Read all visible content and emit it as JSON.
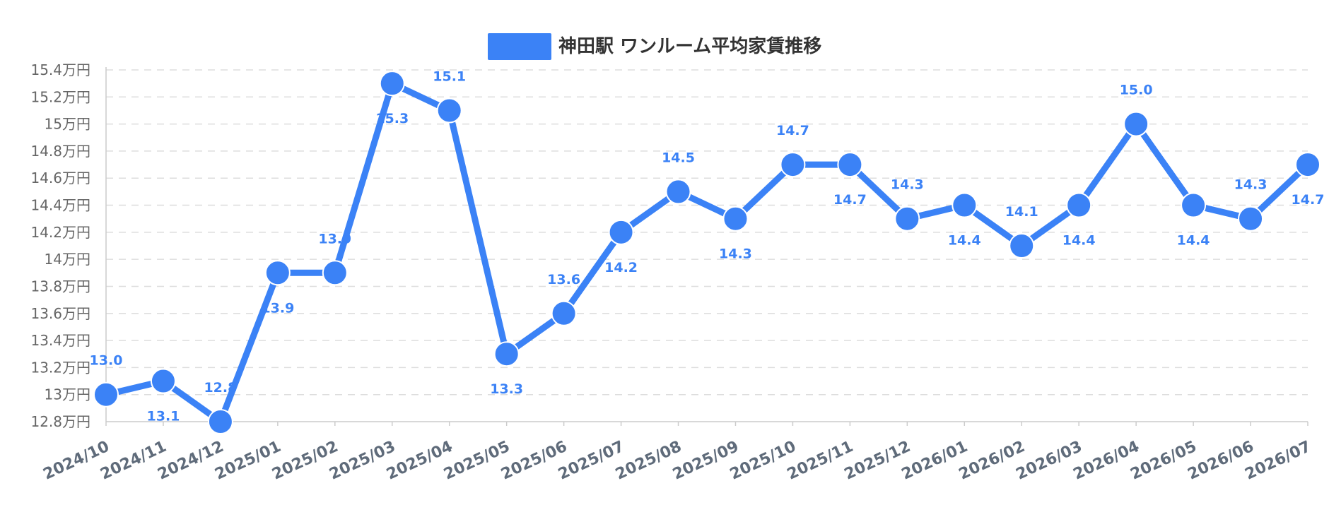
{
  "colors": {
    "series": "#3b82f6",
    "grid": "#dddddd",
    "axis": "#cccccc",
    "tick_text": "#666666",
    "x_tick_text": "#5f6b7a",
    "legend_text": "#333333"
  },
  "chart_data": {
    "type": "line",
    "title": "",
    "xlabel": "",
    "ylabel": "",
    "y_unit_suffix": "万円",
    "ylim": [
      12.8,
      15.4
    ],
    "y_ticks": [
      12.8,
      13,
      13.2,
      13.4,
      13.6,
      13.8,
      14,
      14.2,
      14.4,
      14.6,
      14.8,
      15,
      15.2,
      15.4
    ],
    "y_tick_labels": [
      "12.8万円",
      "13万円",
      "13.2万円",
      "13.4万円",
      "13.6万円",
      "13.8万円",
      "14万円",
      "14.2万円",
      "14.4万円",
      "14.6万円",
      "14.8万円",
      "15万円",
      "15.2万円",
      "15.4万円"
    ],
    "grid": true,
    "legend": "top-center",
    "categories": [
      "2024/10",
      "2024/11",
      "2024/12",
      "2025/01",
      "2025/02",
      "2025/03",
      "2025/04",
      "2025/05",
      "2025/06",
      "2025/07",
      "2025/08",
      "2025/09",
      "2025/10",
      "2025/11",
      "2025/12",
      "2026/01",
      "2026/02",
      "2026/03",
      "2026/04",
      "2026/05",
      "2026/06",
      "2026/07"
    ],
    "series": [
      {
        "name": "神田駅 ワンルーム平均家賃推移",
        "values": [
          13.0,
          13.1,
          12.8,
          13.9,
          13.9,
          15.3,
          15.1,
          13.3,
          13.6,
          14.2,
          14.5,
          14.3,
          14.7,
          14.7,
          14.3,
          14.4,
          14.1,
          14.4,
          15.0,
          14.4,
          14.3,
          14.7
        ],
        "data_labels": [
          "13.0",
          "13.1",
          "12.8",
          "13.9",
          "13.9",
          "15.3",
          "15.1",
          "13.3",
          "13.6",
          "14.2",
          "14.5",
          "14.3",
          "14.7",
          "14.7",
          "14.3",
          "14.4",
          "14.1",
          "14.4",
          "15.0",
          "14.4",
          "14.3",
          "14.7"
        ],
        "label_positions": [
          "above",
          "below",
          "above",
          "below",
          "above",
          "below",
          "above",
          "below",
          "above",
          "below",
          "above",
          "below",
          "above",
          "below",
          "above",
          "below",
          "above",
          "below",
          "above",
          "below",
          "above",
          "below"
        ]
      }
    ]
  }
}
